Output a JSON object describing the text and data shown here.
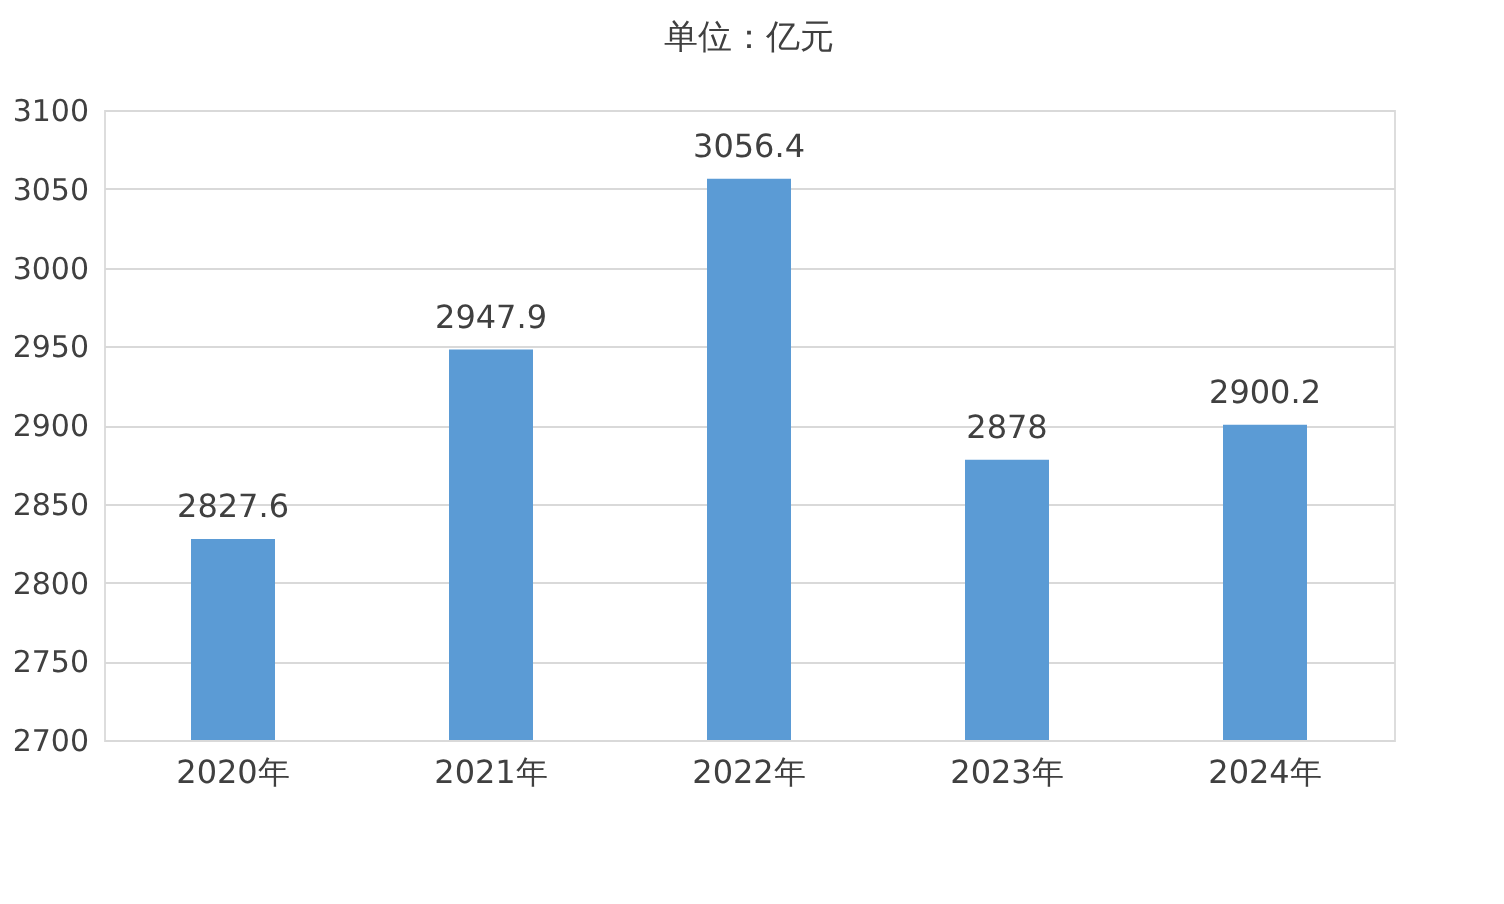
{
  "chart_data": {
    "type": "bar",
    "title": "单位：亿元",
    "categories": [
      "2020年",
      "2021年",
      "2022年",
      "2023年",
      "2024年"
    ],
    "values": [
      2827.6,
      2947.9,
      3056.4,
      2878,
      2900.2
    ],
    "color": "#5b9bd5",
    "ylim": [
      2700,
      3100
    ],
    "yticks": [
      2700,
      2750,
      2800,
      2850,
      2900,
      2950,
      3000,
      3050,
      3100
    ],
    "grid": "y",
    "data_labels": true
  }
}
